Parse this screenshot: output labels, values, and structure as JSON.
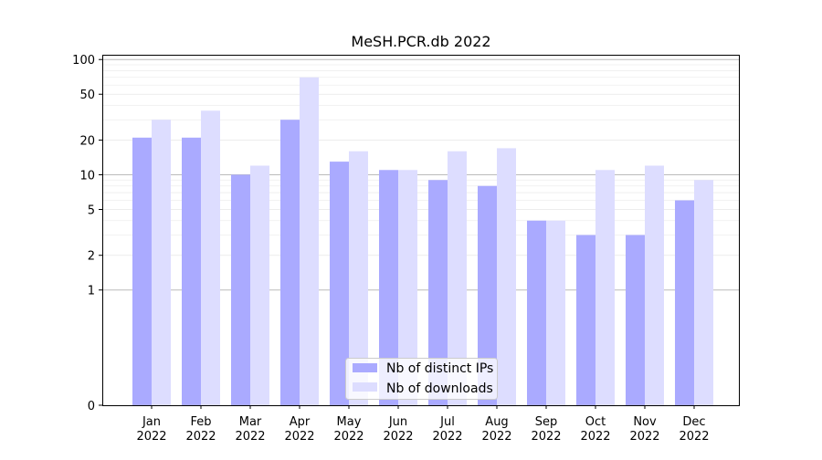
{
  "chart_data": {
    "type": "bar",
    "title": "MeSH.PCR.db 2022",
    "xlabel": "",
    "ylabel": "",
    "yscale": "symlog",
    "ylim": [
      0,
      110
    ],
    "yticks": [
      0,
      1,
      2,
      5,
      10,
      20,
      50,
      100
    ],
    "ytick_labels": [
      "0",
      "1",
      "2",
      "5",
      "10",
      "20",
      "50",
      "100"
    ],
    "categories": [
      [
        "Jan",
        "2022"
      ],
      [
        "Feb",
        "2022"
      ],
      [
        "Mar",
        "2022"
      ],
      [
        "Apr",
        "2022"
      ],
      [
        "May",
        "2022"
      ],
      [
        "Jun",
        "2022"
      ],
      [
        "Jul",
        "2022"
      ],
      [
        "Aug",
        "2022"
      ],
      [
        "Sep",
        "2022"
      ],
      [
        "Oct",
        "2022"
      ],
      [
        "Nov",
        "2022"
      ],
      [
        "Dec",
        "2022"
      ]
    ],
    "series": [
      {
        "name": "Nb of distinct IPs",
        "color": "#aaaaff",
        "values": [
          21,
          21,
          10,
          30,
          13,
          11,
          9,
          8,
          4,
          3,
          3,
          6
        ]
      },
      {
        "name": "Nb of downloads",
        "color": "#ddddff",
        "values": [
          30,
          36,
          12,
          70,
          16,
          11,
          16,
          17,
          4,
          11,
          12,
          9
        ]
      }
    ],
    "grid": true,
    "legend": "bottom-center"
  }
}
